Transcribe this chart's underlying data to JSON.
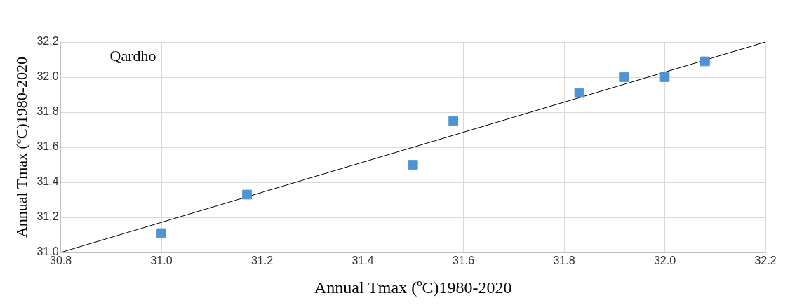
{
  "chart_data": {
    "type": "scatter",
    "xlabel": "Annual Tmax (ºC)1980-2020",
    "ylabel": "Annual Tmax (ºC)1980-2020",
    "annotations": [
      "Qardho"
    ],
    "x": [
      31.0,
      31.17,
      31.5,
      31.58,
      31.83,
      31.92,
      32.0,
      32.08
    ],
    "series": [
      {
        "color": "#4e94d4",
        "marker": "square",
        "values": [
          31.11,
          31.33,
          31.5,
          31.75,
          31.91,
          32.0,
          32.0,
          32.09
        ]
      },
      {
        "type": "line",
        "color": "#000000",
        "x": [
          30.8,
          32.2
        ],
        "values": [
          31.0,
          32.2
        ],
        "marker": "none"
      }
    ],
    "xlim": [
      30.8,
      32.2
    ],
    "xticks": [
      {
        "value": 30.8,
        "label": "30.8"
      },
      {
        "value": 31.0,
        "label": "31.0"
      },
      {
        "value": 31.2,
        "label": "31.2"
      },
      {
        "value": 31.4,
        "label": "31.4"
      },
      {
        "value": 31.6,
        "label": "31.6"
      },
      {
        "value": 31.8,
        "label": "31.8"
      },
      {
        "value": 32.0,
        "label": "32.0"
      },
      {
        "value": 32.2,
        "label": "32.2"
      }
    ],
    "ylim": [
      31.0,
      32.2
    ],
    "yticks": [
      {
        "value": 31.0,
        "label": "31.0"
      },
      {
        "value": 31.2,
        "label": "31.2"
      },
      {
        "value": 31.4,
        "label": "31.4"
      },
      {
        "value": 31.6,
        "label": "31.6"
      },
      {
        "value": 31.8,
        "label": "31.8"
      },
      {
        "value": 32.0,
        "label": "32.0"
      },
      {
        "value": 32.2,
        "label": "32.2"
      }
    ],
    "grid": true,
    "legend": false
  }
}
